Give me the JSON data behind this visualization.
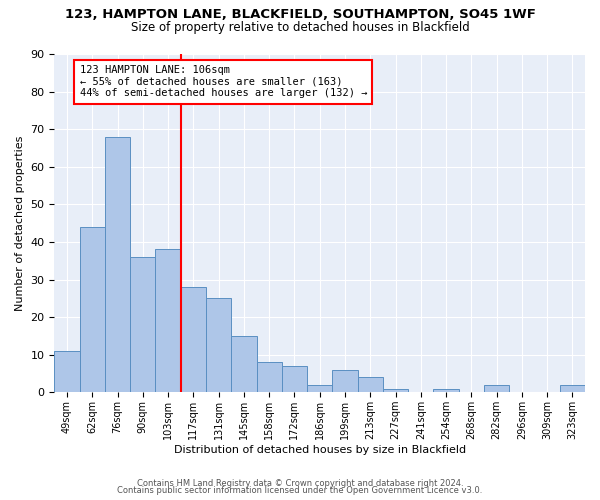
{
  "title1": "123, HAMPTON LANE, BLACKFIELD, SOUTHAMPTON, SO45 1WF",
  "title2": "Size of property relative to detached houses in Blackfield",
  "xlabel": "Distribution of detached houses by size in Blackfield",
  "ylabel": "Number of detached properties",
  "bar_values": [
    11,
    44,
    68,
    36,
    38,
    28,
    25,
    15,
    8,
    7,
    2,
    6,
    4,
    1,
    0,
    1,
    0,
    2,
    0,
    0,
    2
  ],
  "bar_labels": [
    "49sqm",
    "62sqm",
    "76sqm",
    "90sqm",
    "103sqm",
    "117sqm",
    "131sqm",
    "145sqm",
    "158sqm",
    "172sqm",
    "186sqm",
    "199sqm",
    "213sqm",
    "227sqm",
    "241sqm",
    "254sqm",
    "268sqm",
    "282sqm",
    "296sqm",
    "309sqm",
    "323sqm"
  ],
  "bar_color": "#aec6e8",
  "bar_edgecolor": "#5a8fc2",
  "vline_color": "red",
  "vline_x_bin": 4,
  "annotation_text": "123 HAMPTON LANE: 106sqm\n← 55% of detached houses are smaller (163)\n44% of semi-detached houses are larger (132) →",
  "annotation_box_facecolor": "white",
  "annotation_box_edgecolor": "red",
  "ylim": [
    0,
    90
  ],
  "yticks": [
    0,
    10,
    20,
    30,
    40,
    50,
    60,
    70,
    80,
    90
  ],
  "bg_color": "#e8eef8",
  "footer1": "Contains HM Land Registry data © Crown copyright and database right 2024.",
  "footer2": "Contains public sector information licensed under the Open Government Licence v3.0."
}
